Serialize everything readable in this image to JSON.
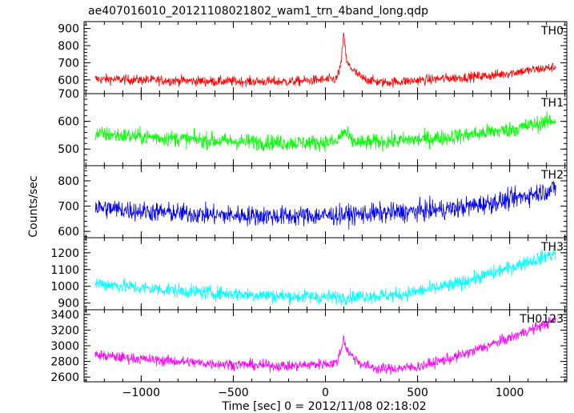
{
  "chart_data": {
    "type": "line",
    "title": "ae407016010_20121108021802_wam1_trn_4band_long.qdp",
    "xlabel": "Time [sec] 0 = 2012/11/08 02:18:02",
    "ylabel": "Counts/sec",
    "xlim": [
      -1310,
      1310
    ],
    "x_ticks": [
      -1000,
      -500,
      0,
      500,
      1000
    ],
    "x_tick_labels": [
      "−1000",
      "−500",
      "0",
      "500",
      "1000"
    ],
    "x_data_range": [
      -1250,
      1250
    ],
    "grid": false,
    "panels": [
      {
        "name": "TH0",
        "color": "#ff0000",
        "ylim": [
          520,
          940
        ],
        "y_ticks": [
          600,
          700,
          800,
          900
        ],
        "y_tick_labels": [
          "600",
          "700",
          "800",
          "900"
        ],
        "profile_x": [
          -1250,
          -1000,
          -600,
          -200,
          60,
          85,
          100,
          115,
          140,
          160,
          200,
          300,
          400,
          600,
          900,
          1100,
          1250
        ],
        "profile_y": [
          605,
          600,
          592,
          590,
          605,
          690,
          880,
          700,
          670,
          645,
          610,
          585,
          590,
          605,
          625,
          655,
          675
        ],
        "noise": 55
      },
      {
        "name": "TH1",
        "color": "#00ff00",
        "ylim": [
          440,
          700
        ],
        "y_ticks": [
          500,
          600,
          700
        ],
        "y_tick_labels": [
          "500",
          "600",
          "700"
        ],
        "profile_x": [
          -1250,
          -1000,
          -600,
          -200,
          60,
          100,
          140,
          200,
          400,
          700,
          1000,
          1250
        ],
        "profile_y": [
          555,
          545,
          530,
          522,
          525,
          565,
          530,
          522,
          530,
          545,
          570,
          605
        ],
        "noise": 55
      },
      {
        "name": "TH2",
        "color": "#0000ff",
        "ylim": [
          575,
          860
        ],
        "y_ticks": [
          600,
          700,
          800
        ],
        "y_tick_labels": [
          "600",
          "700",
          "800"
        ],
        "profile_x": [
          -1250,
          -1000,
          -600,
          -200,
          100,
          400,
          700,
          1000,
          1250
        ],
        "profile_y": [
          695,
          680,
          665,
          660,
          665,
          675,
          690,
          725,
          770
        ],
        "noise": 75
      },
      {
        "name": "TH3",
        "color": "#00ffff",
        "ylim": [
          860,
          1290
        ],
        "y_ticks": [
          900,
          1000,
          1100,
          1200
        ],
        "y_tick_labels": [
          "900",
          "1000",
          "1100",
          "1200"
        ],
        "profile_x": [
          -1250,
          -1000,
          -600,
          -200,
          100,
          400,
          700,
          1000,
          1250
        ],
        "profile_y": [
          1020,
          990,
          960,
          940,
          935,
          950,
          1010,
          1110,
          1200
        ],
        "noise": 80
      },
      {
        "name": "TH0123",
        "color": "#ff00ff",
        "ylim": [
          2540,
          3460
        ],
        "y_ticks": [
          2600,
          2800,
          3000,
          3200,
          3400
        ],
        "y_tick_labels": [
          "2600",
          "2800",
          "3000",
          "3200",
          "3400"
        ],
        "profile_x": [
          -1250,
          -1000,
          -600,
          -200,
          60,
          85,
          100,
          115,
          140,
          200,
          300,
          500,
          700,
          1000,
          1250
        ],
        "profile_y": [
          2880,
          2830,
          2770,
          2740,
          2780,
          2950,
          3110,
          2950,
          2880,
          2760,
          2700,
          2730,
          2850,
          3100,
          3330
        ],
        "noise": 130
      }
    ]
  }
}
